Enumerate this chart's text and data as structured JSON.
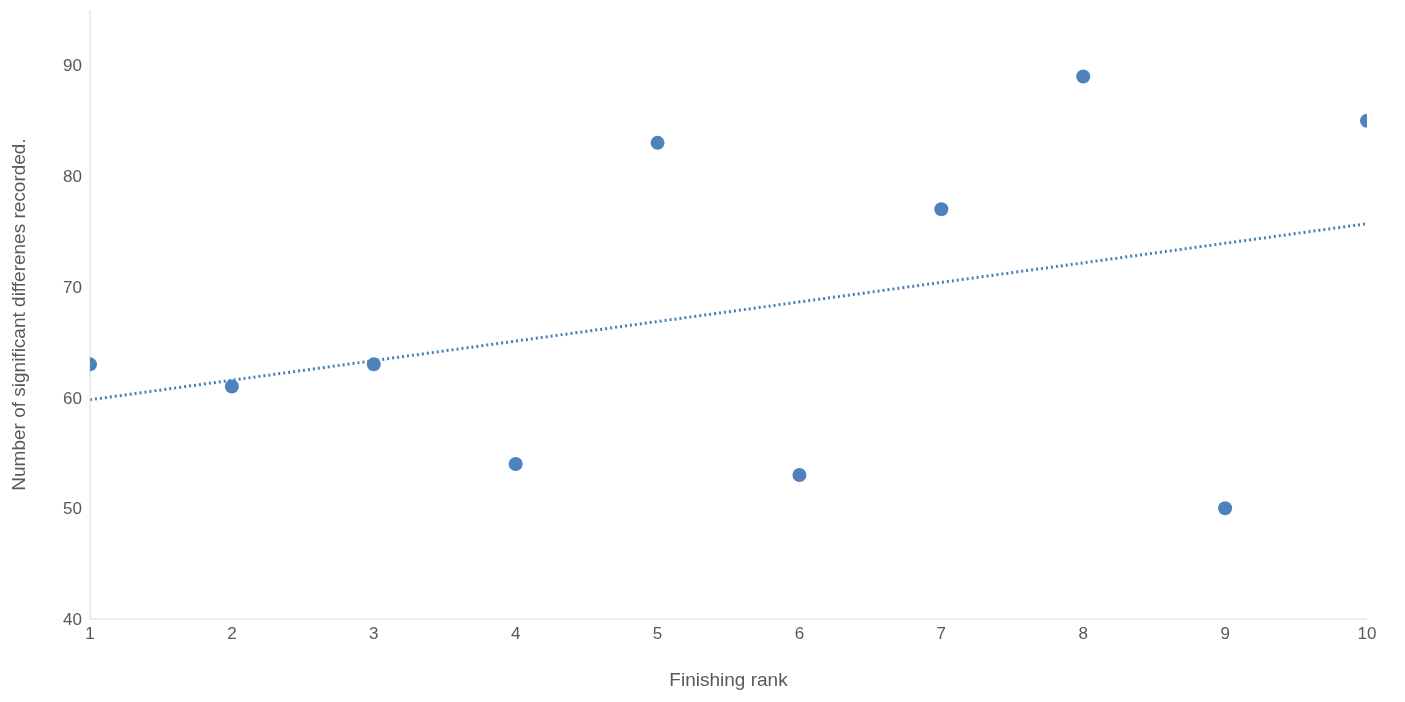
{
  "chart_data": {
    "type": "scatter",
    "xlabel": "Finishing rank",
    "ylabel": "Number of significant differenes recorded.",
    "xlim": [
      1,
      10
    ],
    "xticks": [
      1,
      2,
      3,
      4,
      5,
      6,
      7,
      8,
      9,
      10
    ],
    "ylim": [
      40,
      95
    ],
    "yticks": [
      40,
      50,
      60,
      70,
      80,
      90
    ],
    "grid": false,
    "legend": false,
    "series": [
      {
        "type": "scatter",
        "color": "#4f81bd",
        "marker": "circle",
        "x": [
          1,
          2,
          3,
          4,
          5,
          6,
          7,
          8,
          9,
          10
        ],
        "values": [
          63,
          61,
          63,
          54,
          83,
          53,
          77,
          89,
          50,
          85
        ]
      },
      {
        "type": "line",
        "color": "#4a7ebb",
        "marker": "none",
        "line_style": "dotted",
        "x": [
          1,
          10
        ],
        "values": [
          59.8,
          75.7
        ]
      }
    ]
  }
}
